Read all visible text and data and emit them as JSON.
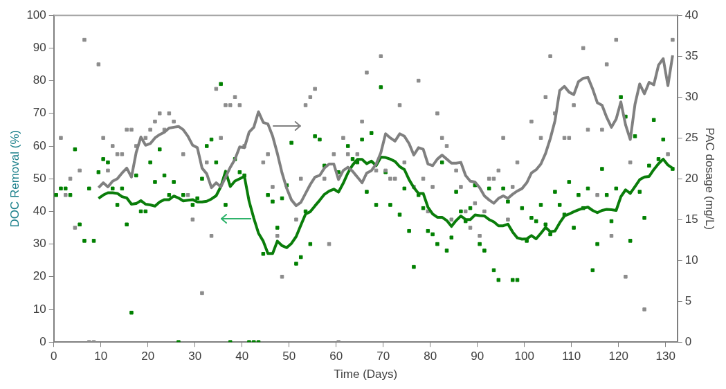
{
  "chart_data": {
    "type": "scatter",
    "xlabel": "Time (Days)",
    "ylabel": "DOC Removal (%)",
    "y2label": "PAC dosage (mg/L)",
    "xlim": [
      0,
      132.5
    ],
    "xticks": [
      0,
      10,
      20,
      30,
      40,
      50,
      60,
      70,
      80,
      90,
      100,
      110,
      120,
      130
    ],
    "ylim": [
      0,
      100
    ],
    "yticks": [
      0,
      10,
      20,
      30,
      40,
      50,
      60,
      70,
      80,
      90,
      100
    ],
    "y2lim": [
      0,
      40
    ],
    "y2ticks": [
      0,
      5,
      10,
      15,
      20,
      25,
      30,
      35,
      40
    ],
    "marker": "square",
    "x": [
      9.5,
      10.5,
      11.5,
      12.5,
      13.5,
      14.5,
      15.5,
      16.5,
      17.5,
      18.5,
      19.5,
      20.5,
      21.5,
      22.5,
      23.5,
      24.5,
      25.5,
      26.5,
      27.5,
      28.5,
      29.5,
      30.5,
      31.5,
      32.5,
      33.5,
      34.5,
      35.5,
      36.5,
      37.5,
      38.5,
      39.5,
      40.5,
      41.5,
      42.5,
      43.5,
      44.5,
      45.5,
      46.5,
      47.5,
      48.5,
      49.5,
      50.5,
      51.5,
      52.5,
      53.5,
      54.5,
      55.5,
      56.5,
      57.5,
      58.5,
      59.5,
      60.5,
      61.5,
      62.5,
      63.5,
      64.5,
      65.5,
      66.5,
      67.5,
      68.5,
      69.5,
      70.5,
      71.5,
      72.5,
      73.5,
      74.5,
      75.5,
      76.5,
      77.5,
      78.5,
      79.5,
      80.5,
      81.5,
      82.5,
      83.5,
      84.5,
      85.5,
      86.5,
      87.5,
      88.5,
      89.5,
      90.5,
      91.5,
      92.5,
      93.5,
      94.5,
      95.5,
      96.5,
      97.5,
      98.5,
      99.5,
      100.5,
      101.5,
      102.5,
      103.5,
      104.5,
      105.5,
      106.5,
      107.5,
      108.5,
      109.5,
      110.5,
      111.5,
      112.5,
      113.5,
      114.5,
      115.5,
      116.5,
      117.5,
      118.5,
      119.5,
      120.5,
      121.5,
      122.5,
      123.5,
      124.5,
      125.5,
      126.5,
      127.5,
      128.5,
      129.5,
      130.5,
      131.5
    ],
    "series": [
      {
        "type": "scatter",
        "color": "#8c8c8c",
        "axis": "y2",
        "x": [
          1.5,
          2.5,
          3.5,
          4.5,
          5.5,
          6.5,
          7.5,
          8.5,
          9.5,
          10.5,
          11.5,
          12.5,
          13.5,
          14.5,
          15.5,
          16.5,
          17.5,
          19.5,
          20.5,
          21.5,
          22.5,
          23.5,
          24.5,
          25.5,
          27.5,
          28.5,
          29.5,
          31.5,
          32.5,
          33.5,
          34.5,
          35.5,
          36.5,
          37.5,
          38.5,
          39.5,
          40.5,
          44.5,
          45.5,
          46.5,
          47.5,
          48.5,
          51.5,
          52.5,
          53.5,
          54.5,
          55.5,
          57.5,
          58.5,
          59.5,
          60.5,
          61.5,
          62.5,
          64.5,
          65.5,
          66.5,
          68.5,
          69.5,
          70.5,
          71.5,
          72.5,
          73.5,
          74.5,
          76.5,
          77.5,
          78.5,
          79.5,
          80.5,
          81.5,
          82.5,
          83.5,
          84.5,
          85.5,
          86.5,
          87.5,
          88.5,
          89.5,
          90.5,
          91.5,
          92.5,
          93.5,
          94.5,
          95.5,
          96.5,
          97.5,
          98.5,
          101.5,
          103.5,
          104.5,
          105.5,
          106.5,
          108.5,
          109.5,
          110.5,
          112.5,
          113.5,
          115.5,
          116.5,
          117.5,
          118.5,
          119.5,
          121.5,
          122.5,
          125.5,
          130.5,
          131.5
        ],
        "values": [
          25,
          18,
          20,
          14,
          21,
          37,
          0,
          0,
          34,
          25,
          21,
          24,
          23,
          23,
          26,
          26,
          24,
          25,
          26,
          27,
          28,
          26,
          28,
          27,
          23,
          18,
          15,
          6,
          22,
          13,
          31,
          25,
          29,
          29,
          30,
          29,
          24,
          22,
          23,
          19,
          13,
          8,
          15,
          20,
          29,
          30,
          31,
          20,
          12,
          23,
          0,
          25,
          23,
          23,
          27,
          33,
          21,
          35,
          21,
          20,
          20,
          29,
          22,
          19,
          32,
          20,
          16,
          19,
          28,
          25,
          24,
          15,
          21,
          19,
          16,
          14,
          17,
          13,
          16,
          20,
          20,
          21,
          25,
          15,
          19,
          22,
          27,
          25,
          30,
          35,
          28,
          25,
          25,
          29,
          36,
          26,
          18,
          26,
          34,
          13,
          37,
          8,
          22,
          4,
          23,
          37
        ]
      },
      {
        "type": "scatter",
        "color": "#008000",
        "x": [
          0.5,
          1.5,
          2.5,
          3.5,
          4.5,
          5.5,
          6.5,
          7.5,
          8.5,
          9.5,
          10.5,
          11.5,
          12.5,
          13.5,
          14.5,
          15.5,
          16.5,
          17.5,
          18.5,
          19.5,
          20.5,
          21.5,
          22.5,
          23.5,
          24.5,
          25.5,
          26.5,
          27.5,
          29.5,
          30.5,
          31.5,
          32.5,
          33.5,
          34.5,
          35.5,
          36.5,
          37.5,
          38.5,
          39.5,
          40.5,
          41.5,
          42.5,
          43.5,
          44.5,
          45.5,
          46.5,
          47.5,
          48.5,
          49.5,
          50.5,
          51.5,
          52.5,
          53.5,
          54.5,
          55.5,
          56.5,
          57.5,
          60.5,
          62.5,
          63.5,
          64.5,
          65.5,
          66.5,
          67.5,
          68.5,
          69.5,
          70.5,
          71.5,
          73.5,
          74.5,
          75.5,
          76.5,
          77.5,
          78.5,
          79.5,
          80.5,
          81.5,
          82.5,
          83.5,
          84.5,
          85.5,
          86.5,
          87.5,
          88.5,
          89.5,
          90.5,
          91.5,
          92.5,
          93.5,
          94.5,
          95.5,
          96.5,
          97.5,
          98.5,
          99.5,
          100.5,
          101.5,
          102.5,
          103.5,
          104.5,
          105.5,
          106.5,
          107.5,
          108.5,
          109.5,
          110.5,
          111.5,
          112.5,
          113.5,
          114.5,
          115.5,
          116.5,
          117.5,
          118.5,
          119.5,
          120.5,
          121.5,
          122.5,
          123.5,
          124.5,
          125.5,
          126.5,
          127.5,
          128.5,
          129.5,
          131.5
        ],
        "values": [
          45,
          47,
          47,
          45,
          59,
          36,
          31,
          47,
          31,
          52,
          56,
          55,
          47,
          42,
          47,
          36,
          9,
          51,
          40,
          40,
          55,
          49,
          59,
          51,
          45,
          49,
          0,
          45,
          42,
          44,
          50,
          60,
          62,
          55,
          79,
          42,
          0,
          56,
          52,
          51,
          0,
          0,
          0,
          27,
          45,
          43,
          35,
          44,
          48,
          61,
          24,
          26,
          40,
          30,
          63,
          62,
          54,
          52,
          60,
          56,
          55,
          62,
          46,
          64,
          42,
          78,
          52,
          42,
          39,
          47,
          34,
          23,
          45,
          41,
          34,
          33,
          30,
          55,
          28,
          32,
          46,
          40,
          37,
          41,
          48,
          30,
          28,
          47,
          22,
          19,
          47,
          43,
          19,
          19,
          41,
          31,
          38,
          37,
          42,
          36,
          33,
          46,
          42,
          39,
          49,
          35,
          45,
          41,
          47,
          22,
          30,
          53,
          45,
          37,
          47,
          75,
          69,
          31,
          63,
          46,
          38,
          54,
          68,
          56,
          62,
          53
        ]
      },
      {
        "type": "line",
        "color": "#808080",
        "axis": "y2",
        "marker": "none",
        "values": [
          18.9,
          19.5,
          19.0,
          19.7,
          20.0,
          20.7,
          21.3,
          20.2,
          23.2,
          25.1,
          24.1,
          24.3,
          25.0,
          25.4,
          25.7,
          26.2,
          26.3,
          26.4,
          26.0,
          25.2,
          24.1,
          23.8,
          21.3,
          20.6,
          18.9,
          19.5,
          19.0,
          20.2,
          21.4,
          22.4,
          23.9,
          23.8,
          25.7,
          26.3,
          28.2,
          26.9,
          26.7,
          25.2,
          23.1,
          20.7,
          18.8,
          17.4,
          16.7,
          17.1,
          18.2,
          19.3,
          20.2,
          20.4,
          21.3,
          21.8,
          21.8,
          19.9,
          21.0,
          21.4,
          20.9,
          20.2,
          19.5,
          20.7,
          21.0,
          21.8,
          23.2,
          25.5,
          25.0,
          24.6,
          25.5,
          25.2,
          24.3,
          22.9,
          23.8,
          23.6,
          21.8,
          21.6,
          22.4,
          22.9,
          22.4,
          21.9,
          21.9,
          22.0,
          20.4,
          19.7,
          19.6,
          18.9,
          17.9,
          17.4,
          17.0,
          17.6,
          17.9,
          17.6,
          18.1,
          18.5,
          18.8,
          19.5,
          20.7,
          21.1,
          21.8,
          23.1,
          24.9,
          27.1,
          30.8,
          31.3,
          30.6,
          30.3,
          31.9,
          32.3,
          32.4,
          31.0,
          29.3,
          29.0,
          27.5,
          26.3,
          27.3,
          29.4,
          26.6,
          24.8,
          29.1,
          31.6,
          30.4,
          31.8,
          31.5,
          33.9,
          34.7,
          31.4,
          35.1
        ]
      },
      {
        "type": "line",
        "color": "#0a7d0a",
        "marker": "none",
        "values": [
          44.0,
          45.0,
          45.7,
          45.7,
          45.5,
          44.5,
          44.1,
          42.2,
          42.4,
          43.3,
          42.2,
          42.0,
          41.6,
          42.9,
          43.6,
          43.6,
          44.7,
          44.1,
          43.2,
          43.4,
          43.6,
          42.9,
          42.9,
          43.1,
          43.8,
          44.8,
          47.6,
          52.3,
          47.6,
          49.3,
          50.0,
          50.7,
          43.1,
          37.9,
          33.3,
          30.9,
          27.1,
          27.1,
          30.9,
          29.5,
          28.9,
          30.2,
          32.3,
          35.8,
          39.2,
          39.9,
          41.7,
          43.4,
          45.2,
          46.2,
          46.8,
          45.9,
          48.6,
          51.8,
          54.2,
          55.9,
          55.9,
          54.6,
          55.4,
          54.0,
          56.6,
          56.5,
          56.0,
          55.3,
          53.7,
          52.8,
          49.7,
          47.3,
          45.5,
          45.5,
          41.3,
          39.2,
          38.2,
          38.2,
          37.2,
          35.4,
          37.2,
          38.6,
          37.5,
          37.5,
          38.9,
          38.7,
          38.6,
          37.5,
          36.8,
          35.6,
          35.6,
          36.1,
          33.7,
          31.9,
          31.5,
          31.6,
          32.6,
          31.6,
          33.3,
          35.1,
          33.8,
          34.0,
          36.5,
          38.6,
          39.2,
          39.9,
          40.5,
          41.0,
          41.3,
          40.3,
          39.6,
          40.3,
          40.6,
          40.5,
          40.3,
          44.5,
          46.6,
          45.5,
          47.6,
          49.7,
          50.5,
          50.7,
          52.8,
          54.6,
          56.0,
          54.2,
          53.2
        ]
      }
    ]
  }
}
